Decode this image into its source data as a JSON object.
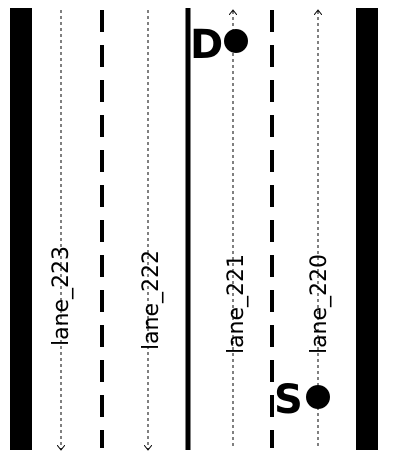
{
  "lanes": [
    {
      "id": "lane_223",
      "label": "lane_223",
      "direction": "down"
    },
    {
      "id": "lane_222",
      "label": "lane_222",
      "direction": "down"
    },
    {
      "id": "lane_221",
      "label": "lane_221",
      "direction": "up"
    },
    {
      "id": "lane_220",
      "label": "lane_220",
      "direction": "up"
    }
  ],
  "markers": {
    "destination": {
      "letter": "D",
      "lane": "lane_221"
    },
    "start": {
      "letter": "S",
      "lane": "lane_220"
    }
  },
  "colors": {
    "road_line": "#000000",
    "background": "#ffffff"
  }
}
